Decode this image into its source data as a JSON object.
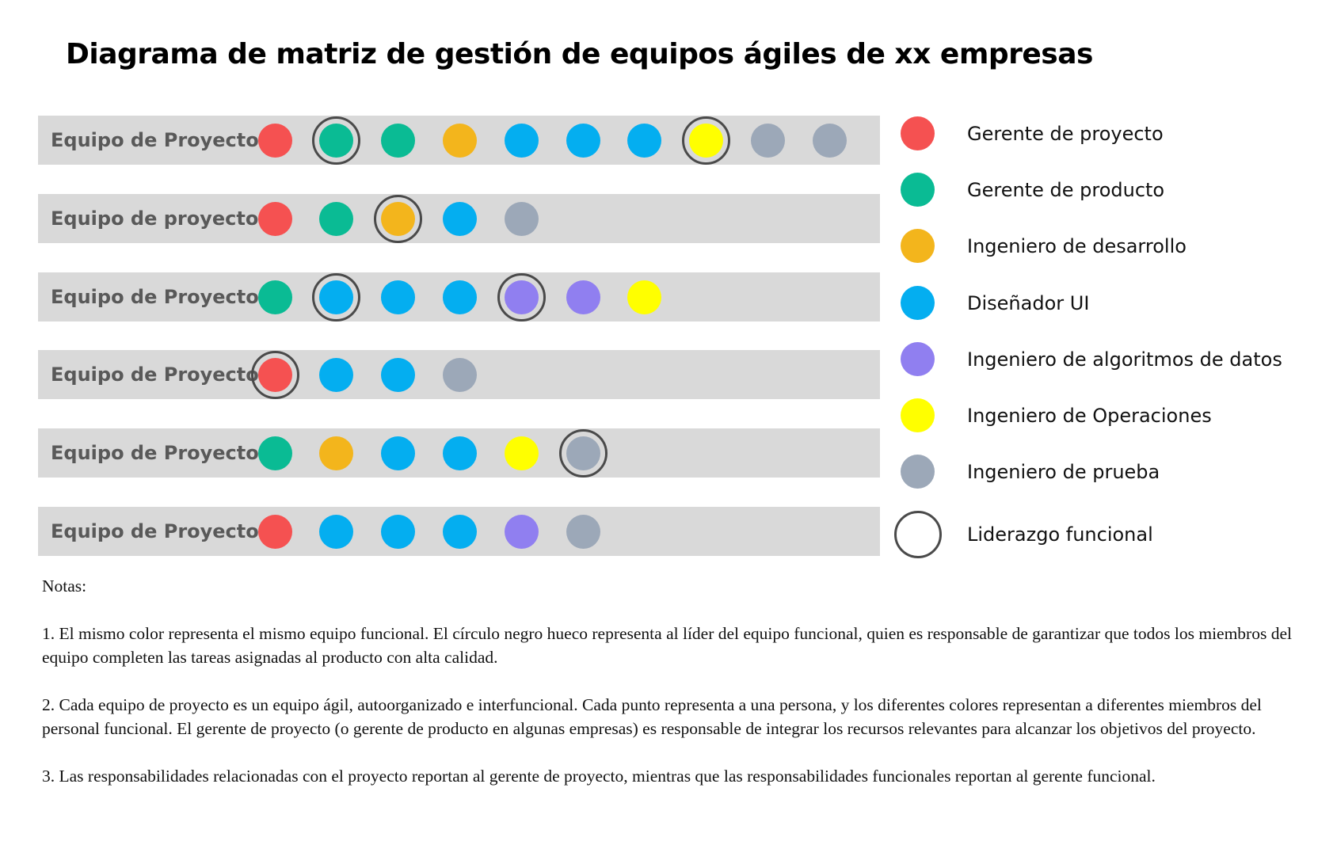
{
  "title": "Diagrama de matriz de gestión de equipos ágiles de xx empresas",
  "colors": {
    "row_background": "#d9d9d9",
    "label_text": "#595959",
    "leader_ring": "#4a4a4a"
  },
  "roles": [
    {
      "key": "pm",
      "label": "Gerente de proyecto",
      "color": "#f55151"
    },
    {
      "key": "prod",
      "label": "Gerente de producto",
      "color": "#0abb94"
    },
    {
      "key": "dev",
      "label": "Ingeniero de desarrollo",
      "color": "#f3b51c"
    },
    {
      "key": "ui",
      "label": "Diseñador UI",
      "color": "#04aef0"
    },
    {
      "key": "algo",
      "label": "Ingeniero de algoritmos de datos",
      "color": "#907ff0"
    },
    {
      "key": "ops",
      "label": "Ingeniero de Operaciones",
      "color": "#ffff00"
    },
    {
      "key": "test",
      "label": "Ingeniero de prueba",
      "color": "#9ca8b8"
    }
  ],
  "leader_legend_label": "Liderazgo funcional",
  "teams": [
    {
      "label": "Equipo de Proyecto 1",
      "members": [
        {
          "role": "pm"
        },
        {
          "role": "prod",
          "leader": true
        },
        {
          "role": "prod"
        },
        {
          "role": "dev"
        },
        {
          "role": "ui"
        },
        {
          "role": "ui"
        },
        {
          "role": "ui"
        },
        {
          "role": "ops",
          "leader": true
        },
        {
          "role": "test"
        },
        {
          "role": "test"
        }
      ]
    },
    {
      "label": "Equipo de proyecto 2",
      "members": [
        {
          "role": "pm"
        },
        {
          "role": "prod"
        },
        {
          "role": "dev",
          "leader": true
        },
        {
          "role": "ui"
        },
        {
          "role": "test"
        }
      ]
    },
    {
      "label": "Equipo de Proyecto 3",
      "members": [
        {
          "role": "prod"
        },
        {
          "role": "ui",
          "leader": true
        },
        {
          "role": "ui"
        },
        {
          "role": "ui"
        },
        {
          "role": "algo",
          "leader": true
        },
        {
          "role": "algo"
        },
        {
          "role": "ops"
        }
      ]
    },
    {
      "label": "Equipo de Proyectos 4",
      "members": [
        {
          "role": "pm",
          "leader": true
        },
        {
          "role": "ui"
        },
        {
          "role": "ui"
        },
        {
          "role": "test"
        }
      ]
    },
    {
      "label": "Equipo de Proyecto 5",
      "members": [
        {
          "role": "prod"
        },
        {
          "role": "dev"
        },
        {
          "role": "ui"
        },
        {
          "role": "ui"
        },
        {
          "role": "ops"
        },
        {
          "role": "test",
          "leader": true
        }
      ]
    },
    {
      "label": "Equipo de Proyecto 6",
      "members": [
        {
          "role": "pm"
        },
        {
          "role": "ui"
        },
        {
          "role": "ui"
        },
        {
          "role": "ui"
        },
        {
          "role": "algo"
        },
        {
          "role": "test"
        }
      ]
    }
  ],
  "notes": {
    "heading": "Notas:",
    "items": [
      "1. El mismo color representa el mismo equipo funcional. El círculo negro hueco representa al líder del equipo funcional, quien es responsable de garantizar que todos los miembros del equipo completen las tareas asignadas al producto con alta calidad.",
      "2. Cada equipo de proyecto es un equipo ágil, autoorganizado e interfuncional. Cada punto representa a una persona, y los diferentes colores representan a diferentes miembros del personal funcional. El gerente de proyecto (o gerente de producto en algunas empresas) es responsable de integrar los recursos relevantes para alcanzar los objetivos del proyecto.",
      "3. Las responsabilidades relacionadas con el proyecto reportan al gerente de proyecto, mientras que las responsabilidades funcionales reportan al gerente funcional."
    ]
  }
}
